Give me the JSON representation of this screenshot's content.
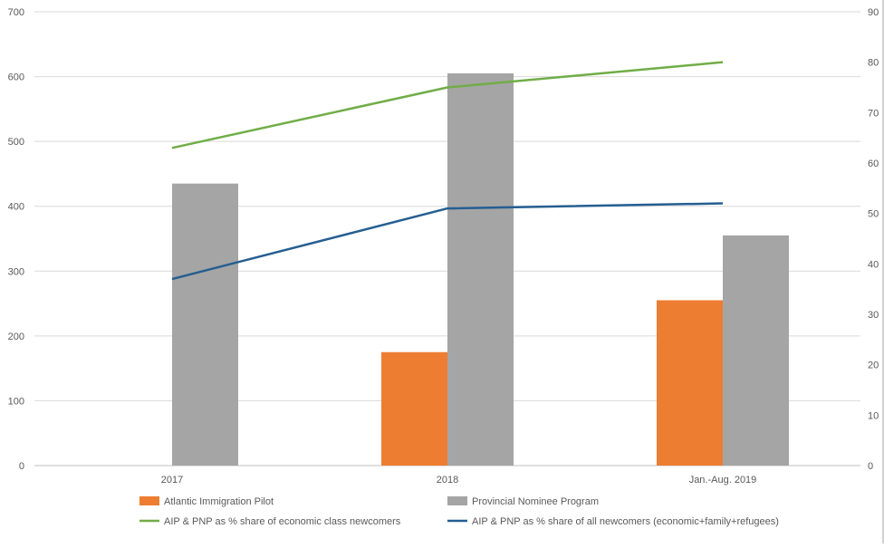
{
  "chart_data": {
    "type": "bar",
    "categories": [
      "2017",
      "2018",
      "Jan.-Aug. 2019"
    ],
    "bar_series": [
      {
        "name": "Atlantic Immigration Pilot",
        "color": "#ED7D31",
        "values": [
          0,
          175,
          255
        ]
      },
      {
        "name": "Provincial Nominee Program",
        "color": "#A5A5A5",
        "values": [
          435,
          605,
          355
        ]
      }
    ],
    "line_series": [
      {
        "name": "AIP & PNP as % share of economic class newcomers",
        "color": "#70AD47",
        "values": [
          63,
          75,
          80
        ],
        "axis": "secondary"
      },
      {
        "name": "AIP & PNP as % share of all newcomers (economic+family+refugees)",
        "color": "#255E91",
        "values": [
          37,
          51,
          52
        ],
        "axis": "secondary"
      }
    ],
    "y_primary": {
      "min": 0,
      "max": 700,
      "ticks": [
        "0",
        "100",
        "200",
        "300",
        "400",
        "500",
        "600",
        "700"
      ]
    },
    "y_secondary": {
      "min": 0,
      "max": 90,
      "ticks": [
        "0",
        "10",
        "20",
        "30",
        "40",
        "50",
        "60",
        "70",
        "80",
        "90"
      ]
    },
    "grid": true,
    "legend_position": "bottom",
    "title": "",
    "xlabel": "",
    "ylabel": ""
  }
}
